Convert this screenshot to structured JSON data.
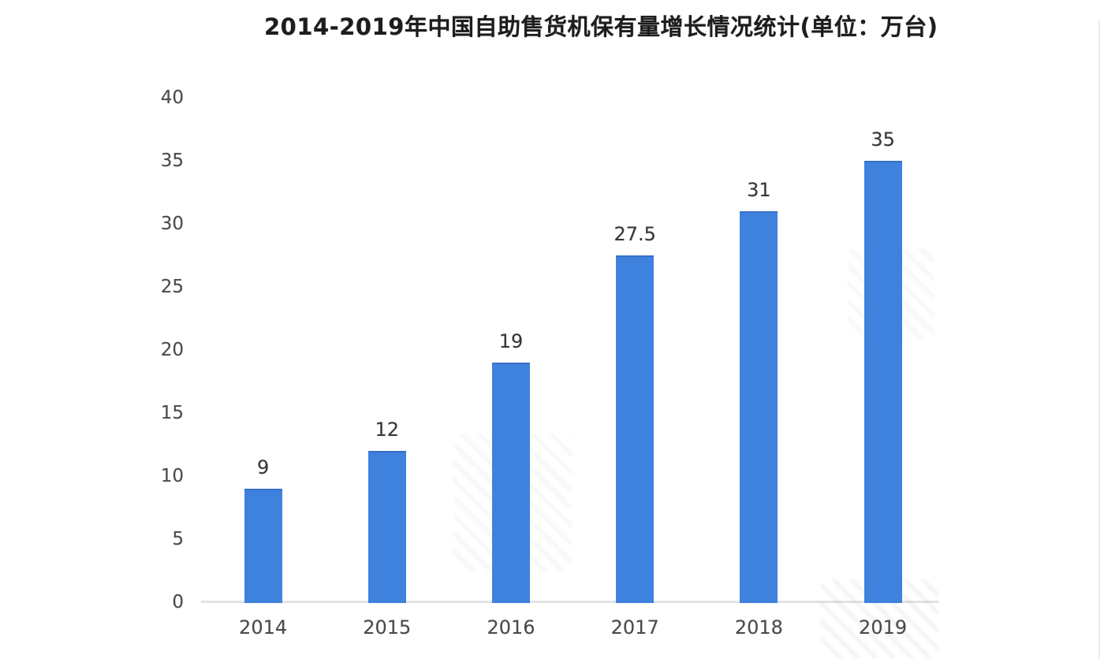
{
  "chart_data": {
    "type": "bar",
    "title": "2014-2019年中国自助售货机保有量增长情况统计(单位：万台)",
    "categories": [
      "2014",
      "2015",
      "2016",
      "2017",
      "2018",
      "2019"
    ],
    "values": [
      9,
      12,
      19,
      27.5,
      31,
      35
    ],
    "value_labels": [
      "9",
      "12",
      "19",
      "27.5",
      "31",
      "35"
    ],
    "ylim": [
      0,
      40
    ],
    "ytick_step": 5,
    "ytick_labels": [
      "0",
      "5",
      "10",
      "15",
      "20",
      "25",
      "30",
      "35",
      "40"
    ],
    "xlabel": "",
    "ylabel": "",
    "grid": false,
    "legend_position": "none",
    "bar_color": "#3f82de",
    "axis_line_color": "#e3e3e6",
    "title_color": "#1d1d1d",
    "tick_label_color": "#4b4b4b",
    "value_label_color": "#363636"
  }
}
